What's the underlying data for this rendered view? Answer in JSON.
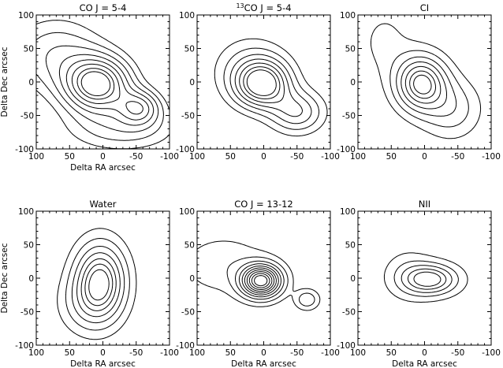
{
  "chart_data": [
    {
      "type": "contour",
      "title_main": "CO J = 5-4",
      "title_sup": "",
      "xlabel": "Delta RA arcsec",
      "ylabel": "Delta Dec arcsec",
      "xlim": [
        100,
        -100
      ],
      "ylim": [
        -100,
        100
      ],
      "xticks": [
        100,
        50,
        0,
        -50,
        -100
      ],
      "yticks": [
        100,
        50,
        0,
        -50,
        -100
      ],
      "peak": [
        10,
        -5
      ],
      "components": [
        {
          "x": 8,
          "y": -4,
          "amp": 1.0,
          "sx": 34,
          "sy": 28
        },
        {
          "x": -55,
          "y": -38,
          "amp": 0.55,
          "sx": 22,
          "sy": 18
        },
        {
          "x": 70,
          "y": 40,
          "amp": 0.35,
          "sx": 50,
          "sy": 40
        },
        {
          "x": -30,
          "y": -70,
          "amp": 0.3,
          "sx": 60,
          "sy": 25
        }
      ],
      "levels": [
        0.15,
        0.25,
        0.36,
        0.48,
        0.6,
        0.72,
        0.84,
        0.93
      ]
    },
    {
      "type": "contour",
      "title_main": "CO J = 5-4",
      "title_sup": "13",
      "xlabel": "",
      "ylabel": "",
      "xlim": [
        100,
        -100
      ],
      "ylim": [
        -100,
        100
      ],
      "xticks": [
        100,
        50,
        0,
        -50,
        -100
      ],
      "yticks": [
        100,
        50,
        0,
        -50,
        -100
      ],
      "peak": [
        2,
        -3
      ],
      "components": [
        {
          "x": 2,
          "y": -3,
          "amp": 1.0,
          "sx": 28,
          "sy": 24
        },
        {
          "x": -50,
          "y": -45,
          "amp": 0.55,
          "sx": 28,
          "sy": 22
        },
        {
          "x": 20,
          "y": 20,
          "amp": 0.3,
          "sx": 40,
          "sy": 35
        }
      ],
      "levels": [
        0.15,
        0.28,
        0.42,
        0.56,
        0.7,
        0.84,
        0.96
      ]
    },
    {
      "type": "contour",
      "title_main": "CI",
      "title_sup": "",
      "xlabel": "",
      "ylabel": "",
      "xlim": [
        100,
        -100
      ],
      "ylim": [
        -100,
        100
      ],
      "xticks": [
        100,
        50,
        0,
        -50,
        -100
      ],
      "yticks": [
        100,
        50,
        0,
        -50,
        -100
      ],
      "peak": [
        5,
        -2
      ],
      "components": [
        {
          "x": 5,
          "y": -2,
          "amp": 1.0,
          "sx": 26,
          "sy": 28
        },
        {
          "x": -40,
          "y": -40,
          "amp": 0.35,
          "sx": 30,
          "sy": 30
        },
        {
          "x": 60,
          "y": 60,
          "amp": 0.15,
          "sx": 30,
          "sy": 40
        }
      ],
      "levels": [
        0.12,
        0.25,
        0.4,
        0.55,
        0.7,
        0.84,
        0.95
      ]
    },
    {
      "type": "contour",
      "title_main": "Water",
      "title_sup": "",
      "xlabel": "Delta RA arcsec",
      "ylabel": "Delta Dec arcsec",
      "xlim": [
        100,
        -100
      ],
      "ylim": [
        -100,
        100
      ],
      "xticks": [
        100,
        50,
        0,
        -50,
        -100
      ],
      "yticks": [
        100,
        50,
        0,
        -50,
        -100
      ],
      "peak": [
        4,
        -4
      ],
      "components": [
        {
          "x": 4,
          "y": -4,
          "amp": 1.0,
          "sx": 26,
          "sy": 38
        },
        {
          "x": 25,
          "y": -40,
          "amp": 0.25,
          "sx": 30,
          "sy": 30
        }
      ],
      "levels": [
        0.12,
        0.25,
        0.4,
        0.55,
        0.7,
        0.83,
        0.95
      ]
    },
    {
      "type": "contour",
      "title_main": "CO J = 13-12",
      "title_sup": "",
      "xlabel": "Delta RA arcsec",
      "ylabel": "",
      "xlim": [
        100,
        -100
      ],
      "ylim": [
        -100,
        100
      ],
      "xticks": [
        100,
        50,
        0,
        -50,
        -100
      ],
      "yticks": [
        100,
        50,
        0,
        -50,
        -100
      ],
      "peak": [
        4,
        -4
      ],
      "components": [
        {
          "x": 4,
          "y": -4,
          "amp": 1.0,
          "sx": 20,
          "sy": 16
        },
        {
          "x": -65,
          "y": -32,
          "amp": 0.22,
          "sx": 12,
          "sy": 10
        },
        {
          "x": 60,
          "y": 20,
          "amp": 0.12,
          "sx": 45,
          "sy": 30
        }
      ],
      "levels": [
        0.06,
        0.14,
        0.24,
        0.34,
        0.44,
        0.54,
        0.64,
        0.74,
        0.84,
        0.93
      ]
    },
    {
      "type": "contour",
      "title_main": "NII",
      "title_sup": "",
      "xlabel": "Delta RA arcsec",
      "ylabel": "",
      "xlim": [
        100,
        -100
      ],
      "ylim": [
        -100,
        100
      ],
      "xticks": [
        100,
        50,
        0,
        -50,
        -100
      ],
      "yticks": [
        100,
        50,
        0,
        -50,
        -100
      ],
      "peak": [
        -10,
        -2
      ],
      "components": [
        {
          "x": -10,
          "y": -2,
          "amp": 1.0,
          "sx": 28,
          "sy": 16
        },
        {
          "x": 25,
          "y": 5,
          "amp": 0.3,
          "sx": 25,
          "sy": 25
        }
      ],
      "levels": [
        0.15,
        0.35,
        0.55,
        0.75,
        0.92
      ]
    }
  ]
}
